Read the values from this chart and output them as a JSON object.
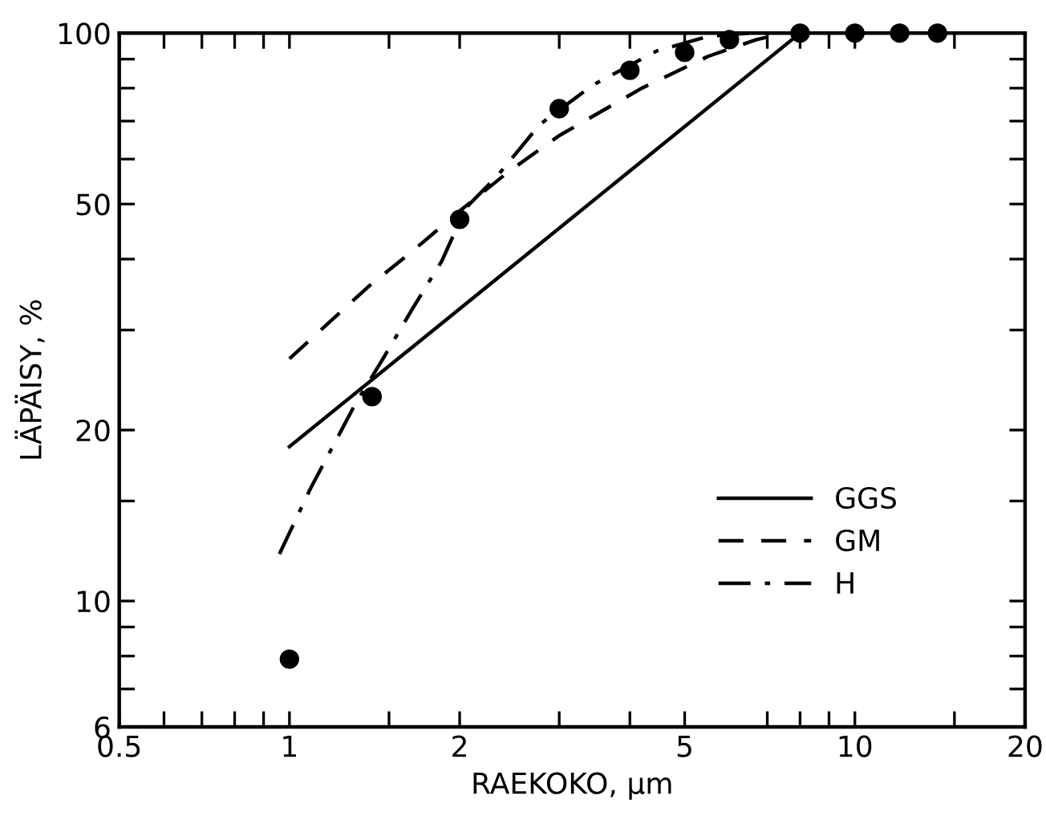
{
  "chart_data": {
    "type": "line",
    "xlabel": "RAEKOKO, µm",
    "ylabel": "LÄPÄISY, %",
    "log": "xy",
    "xlim": [
      0.5,
      20
    ],
    "ylim": [
      6,
      100
    ],
    "xticks": [
      0.5,
      1,
      2,
      5,
      10,
      20,
      {
        "value": 0.6,
        "label": null
      },
      {
        "value": 0.7,
        "label": null
      },
      {
        "value": 0.8,
        "label": null
      },
      {
        "value": 0.9,
        "label": null
      },
      {
        "value": 1.5,
        "label": null
      },
      {
        "value": 3,
        "label": null
      },
      {
        "value": 4,
        "label": null
      },
      {
        "value": 7,
        "label": null
      },
      {
        "value": 8,
        "label": null
      },
      {
        "value": 9,
        "label": null
      },
      {
        "value": 15,
        "label": null
      }
    ],
    "yticks": [
      6,
      10,
      20,
      50,
      100,
      {
        "value": 7,
        "label": null
      },
      {
        "value": 8,
        "label": null
      },
      {
        "value": 9,
        "label": null
      },
      {
        "value": 15,
        "label": null
      },
      {
        "value": 30,
        "label": null
      },
      {
        "value": 40,
        "label": null
      },
      {
        "value": 60,
        "label": null
      },
      {
        "value": 70,
        "label": null
      },
      {
        "value": 80,
        "label": null
      },
      {
        "value": 90,
        "label": null
      }
    ],
    "grid": false,
    "legend": "lower right",
    "series": [
      {
        "type": "scatter",
        "color": "#000000",
        "marker": "circle",
        "x": [
          1,
          1.4,
          2,
          3,
          4,
          5,
          6,
          8,
          10,
          12,
          14
        ],
        "values": [
          7.9,
          22.9,
          47,
          73.6,
          86,
          92.5,
          97.4,
          100,
          100,
          100,
          100
        ]
      },
      {
        "name": "GGS",
        "color": "#000000",
        "line_style": "solid",
        "x": [
          1,
          8
        ],
        "values": [
          18.7,
          100
        ]
      },
      {
        "name": "GM",
        "color": "#000000",
        "line_style": "dashed",
        "x": [
          1,
          1.38,
          1.65,
          2,
          2.44,
          3,
          4.2,
          5.5,
          6.7,
          7.5
        ],
        "values": [
          26.7,
          35.8,
          41.3,
          48.6,
          57,
          66,
          80,
          91,
          97.4,
          100
        ]
      },
      {
        "name": "H",
        "color": "#000000",
        "line_style": "dashdot",
        "x": [
          0.96,
          1.09,
          1.31,
          1.46,
          1.65,
          1.86,
          2.05,
          2.33,
          2.77,
          3.44,
          4.46,
          5.5,
          6.5
        ],
        "values": [
          12.1,
          15.8,
          22.3,
          26.6,
          32.7,
          39.7,
          49.2,
          56,
          69,
          81,
          93,
          98.7,
          100
        ]
      }
    ]
  }
}
